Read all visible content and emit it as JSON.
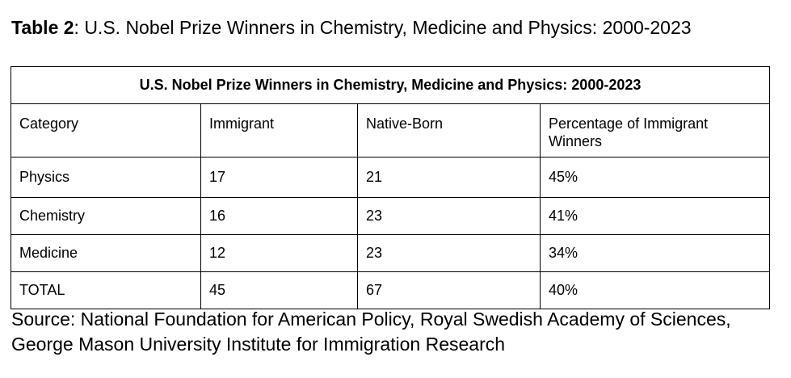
{
  "caption": {
    "label": "Table 2",
    "text": ": U.S. Nobel Prize Winners in Chemistry, Medicine and Physics: 2000-2023"
  },
  "table": {
    "title": "U.S. Nobel Prize Winners in Chemistry, Medicine and Physics: 2000-2023",
    "columns": [
      "Category",
      "Immigrant",
      "Native-Born",
      "Percentage of Immigrant Winners"
    ],
    "rows": [
      [
        "Physics",
        "17",
        "21",
        "45%"
      ],
      [
        "Chemistry",
        "16",
        "23",
        "41%"
      ],
      [
        "Medicine",
        "12",
        "23",
        "34%"
      ],
      [
        "TOTAL",
        "45",
        "67",
        "40%"
      ]
    ]
  },
  "source": "Source: National Foundation for American Policy, Royal Swedish Academy of Sciences, George Mason University Institute for Immigration Research"
}
